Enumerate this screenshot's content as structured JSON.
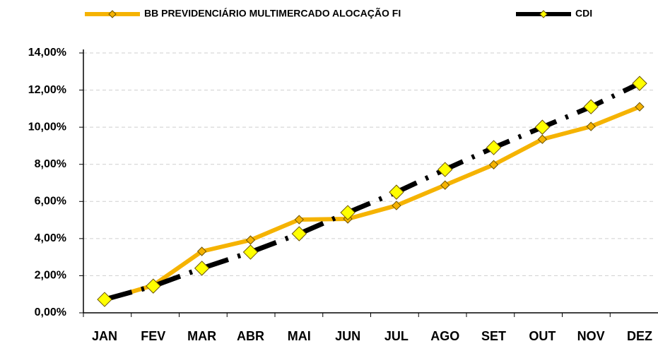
{
  "chart_data": {
    "type": "line",
    "categories": [
      "JAN",
      "FEV",
      "MAR",
      "ABR",
      "MAI",
      "JUN",
      "JUL",
      "AGO",
      "SET",
      "OUT",
      "NOV",
      "DEZ"
    ],
    "series": [
      {
        "name": "BB PREVIDENCIÁRIO MULTIMERCADO ALOCAÇÃO FI",
        "color": "#f5b301",
        "marker_color": "#f5b301",
        "dashed": false,
        "values": [
          0.7,
          1.48,
          3.31,
          3.92,
          5.02,
          5.06,
          5.78,
          6.88,
          7.98,
          9.35,
          10.04,
          11.1
        ]
      },
      {
        "name": "CDI",
        "color": "#000000",
        "marker_color": "#ffff00",
        "dashed": true,
        "values": [
          0.72,
          1.44,
          2.4,
          3.27,
          4.26,
          5.4,
          6.5,
          7.72,
          8.9,
          10.0,
          11.1,
          12.36
        ]
      }
    ],
    "ylim": [
      0,
      14
    ],
    "yticks": [
      {
        "value": 0,
        "label": "0,00%"
      },
      {
        "value": 2,
        "label": "2,00%"
      },
      {
        "value": 4,
        "label": "4,00%"
      },
      {
        "value": 6,
        "label": "6,00%"
      },
      {
        "value": 8,
        "label": "8,00%"
      },
      {
        "value": 10,
        "label": "10,00%"
      },
      {
        "value": 12,
        "label": "12,00%"
      },
      {
        "value": 14,
        "label": "14,00%"
      }
    ],
    "grid": true,
    "legend": "top"
  }
}
